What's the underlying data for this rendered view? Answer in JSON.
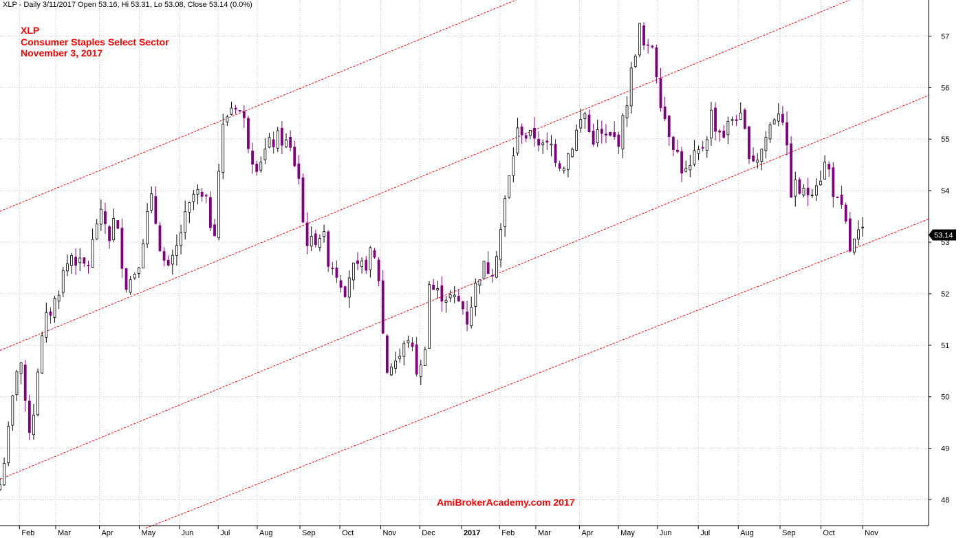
{
  "header": {
    "symbol": "XLP",
    "interval": "Daily",
    "date": "3/11/2017",
    "open": "53.16",
    "high": "53.31",
    "low": "53.08",
    "close": "53.14",
    "change": "(0.0%)",
    "text": "XLP - Daily 3/11/2017 Open 53.16, Hi 53.31, Lo 53.08, Close 53.14 (0.0%)"
  },
  "annotations": {
    "line1": "XLP",
    "line2": "Consumer Staples Select Sector",
    "line3": "November 3, 2017"
  },
  "watermark": "AmiBrokerAcademy.com  2017",
  "colors": {
    "up_candle": "#000000",
    "down_candle": "#800080",
    "channel": "#ff0000",
    "grid": "#c8c8c8",
    "annotation": "#ff0000",
    "price_tag_bg": "#000000",
    "price_tag_fg": "#ffffff"
  },
  "chart_data": {
    "type": "candlestick",
    "symbol": "XLP",
    "interval": "Daily",
    "last_close": 53.14,
    "last_close_label": "53.14",
    "ylim": [
      47.5,
      57.7
    ],
    "y_ticks": [
      48,
      49,
      50,
      51,
      52,
      53,
      54,
      55,
      56,
      57
    ],
    "x_ticks": [
      {
        "label": "Feb",
        "t": 0.021
      },
      {
        "label": "Mar",
        "t": 0.06
      },
      {
        "label": "Apr",
        "t": 0.107
      },
      {
        "label": "May",
        "t": 0.15
      },
      {
        "label": "Jun",
        "t": 0.193
      },
      {
        "label": "Jul",
        "t": 0.235
      },
      {
        "label": "Aug",
        "t": 0.277
      },
      {
        "label": "Sep",
        "t": 0.323
      },
      {
        "label": "Oct",
        "t": 0.366
      },
      {
        "label": "Nov",
        "t": 0.41
      },
      {
        "label": "Dec",
        "t": 0.452
      },
      {
        "label": "2017",
        "t": 0.497,
        "bold": true
      },
      {
        "label": "Feb",
        "t": 0.538
      },
      {
        "label": "Mar",
        "t": 0.577
      },
      {
        "label": "Apr",
        "t": 0.624
      },
      {
        "label": "May",
        "t": 0.666
      },
      {
        "label": "Jun",
        "t": 0.708
      },
      {
        "label": "Jul",
        "t": 0.752
      },
      {
        "label": "Aug",
        "t": 0.795
      },
      {
        "label": "Sep",
        "t": 0.84
      },
      {
        "label": "Oct",
        "t": 0.884
      },
      {
        "label": "Nov",
        "t": 0.929
      }
    ],
    "price_path": [
      [
        0.0,
        48.3
      ],
      [
        0.01,
        49.4
      ],
      [
        0.021,
        51.0
      ],
      [
        0.028,
        49.6
      ],
      [
        0.034,
        49.3
      ],
      [
        0.042,
        50.8
      ],
      [
        0.05,
        51.5
      ],
      [
        0.06,
        51.9
      ],
      [
        0.068,
        52.4
      ],
      [
        0.078,
        52.8
      ],
      [
        0.087,
        52.5
      ],
      [
        0.096,
        52.6
      ],
      [
        0.104,
        53.4
      ],
      [
        0.111,
        53.5
      ],
      [
        0.118,
        53.1
      ],
      [
        0.124,
        53.5
      ],
      [
        0.129,
        52.9
      ],
      [
        0.136,
        52.2
      ],
      [
        0.142,
        52.3
      ],
      [
        0.15,
        52.7
      ],
      [
        0.157,
        53.4
      ],
      [
        0.163,
        53.8
      ],
      [
        0.169,
        53.3
      ],
      [
        0.175,
        52.7
      ],
      [
        0.181,
        52.4
      ],
      [
        0.188,
        52.7
      ],
      [
        0.196,
        53.3
      ],
      [
        0.203,
        53.6
      ],
      [
        0.21,
        54.0
      ],
      [
        0.218,
        53.8
      ],
      [
        0.224,
        53.7
      ],
      [
        0.23,
        53.0
      ],
      [
        0.235,
        54.3
      ],
      [
        0.24,
        55.2
      ],
      [
        0.247,
        55.6
      ],
      [
        0.254,
        55.7
      ],
      [
        0.262,
        55.4
      ],
      [
        0.268,
        54.9
      ],
      [
        0.275,
        54.5
      ],
      [
        0.283,
        54.7
      ],
      [
        0.291,
        54.9
      ],
      [
        0.298,
        55.0
      ],
      [
        0.305,
        55.0
      ],
      [
        0.312,
        54.8
      ],
      [
        0.318,
        54.5
      ],
      [
        0.323,
        54.2
      ],
      [
        0.326,
        53.4
      ],
      [
        0.333,
        52.9
      ],
      [
        0.34,
        53.1
      ],
      [
        0.347,
        53.2
      ],
      [
        0.353,
        52.7
      ],
      [
        0.36,
        52.5
      ],
      [
        0.366,
        52.3
      ],
      [
        0.372,
        52.1
      ],
      [
        0.378,
        52.5
      ],
      [
        0.386,
        52.4
      ],
      [
        0.394,
        52.6
      ],
      [
        0.401,
        52.8
      ],
      [
        0.408,
        52.3
      ],
      [
        0.412,
        51.3
      ],
      [
        0.416,
        50.5
      ],
      [
        0.424,
        50.7
      ],
      [
        0.432,
        50.8
      ],
      [
        0.44,
        51.2
      ],
      [
        0.447,
        50.6
      ],
      [
        0.452,
        50.4
      ],
      [
        0.458,
        51.1
      ],
      [
        0.462,
        52.2
      ],
      [
        0.47,
        52.0
      ],
      [
        0.478,
        52.0
      ],
      [
        0.486,
        51.9
      ],
      [
        0.497,
        51.8
      ],
      [
        0.503,
        51.5
      ],
      [
        0.51,
        52.0
      ],
      [
        0.518,
        52.5
      ],
      [
        0.524,
        52.5
      ],
      [
        0.53,
        52.5
      ],
      [
        0.538,
        53.1
      ],
      [
        0.544,
        53.8
      ],
      [
        0.55,
        54.4
      ],
      [
        0.556,
        55.1
      ],
      [
        0.562,
        55.2
      ],
      [
        0.569,
        55.0
      ],
      [
        0.577,
        55.1
      ],
      [
        0.585,
        54.8
      ],
      [
        0.593,
        54.9
      ],
      [
        0.6,
        54.6
      ],
      [
        0.606,
        54.5
      ],
      [
        0.614,
        54.8
      ],
      [
        0.624,
        55.3
      ],
      [
        0.63,
        55.5
      ],
      [
        0.636,
        55.0
      ],
      [
        0.645,
        55.1
      ],
      [
        0.652,
        55.0
      ],
      [
        0.66,
        55.0
      ],
      [
        0.666,
        55.0
      ],
      [
        0.672,
        55.4
      ],
      [
        0.678,
        56.1
      ],
      [
        0.683,
        56.6
      ],
      [
        0.688,
        57.2
      ],
      [
        0.693,
        56.8
      ],
      [
        0.697,
        56.6
      ],
      [
        0.701,
        57.0
      ],
      [
        0.708,
        56.2
      ],
      [
        0.713,
        55.6
      ],
      [
        0.72,
        55.2
      ],
      [
        0.728,
        54.8
      ],
      [
        0.735,
        54.4
      ],
      [
        0.741,
        54.3
      ],
      [
        0.747,
        54.6
      ],
      [
        0.752,
        54.7
      ],
      [
        0.76,
        55.0
      ],
      [
        0.766,
        55.5
      ],
      [
        0.772,
        55.2
      ],
      [
        0.78,
        55.1
      ],
      [
        0.788,
        55.4
      ],
      [
        0.795,
        55.5
      ],
      [
        0.802,
        55.1
      ],
      [
        0.808,
        54.7
      ],
      [
        0.814,
        54.6
      ],
      [
        0.82,
        54.8
      ],
      [
        0.826,
        55.1
      ],
      [
        0.832,
        55.4
      ],
      [
        0.838,
        55.6
      ],
      [
        0.844,
        55.4
      ],
      [
        0.848,
        54.6
      ],
      [
        0.852,
        54.0
      ],
      [
        0.858,
        54.1
      ],
      [
        0.864,
        53.9
      ],
      [
        0.872,
        54.0
      ],
      [
        0.878,
        54.2
      ],
      [
        0.884,
        54.3
      ],
      [
        0.89,
        54.6
      ],
      [
        0.895,
        54.2
      ],
      [
        0.9,
        53.8
      ],
      [
        0.906,
        53.6
      ],
      [
        0.911,
        53.3
      ],
      [
        0.914,
        52.9
      ],
      [
        0.917,
        52.8
      ],
      [
        0.922,
        53.1
      ],
      [
        0.929,
        53.14
      ]
    ],
    "channel_lines": [
      {
        "t0": 0.0,
        "y0": 53.6,
        "t1": 0.935,
        "y1": 60.5
      },
      {
        "t0": 0.0,
        "y0": 50.9,
        "t1": 0.935,
        "y1": 57.85
      },
      {
        "t0": 0.0,
        "y0": 48.4,
        "t1": 1.0,
        "y1": 55.85
      },
      {
        "t0": 0.157,
        "y0": 47.45,
        "t1": 1.0,
        "y1": 53.45
      }
    ]
  }
}
